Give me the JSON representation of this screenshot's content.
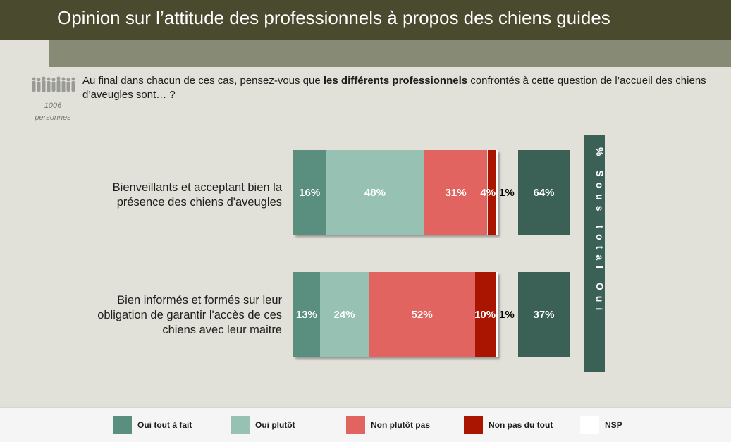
{
  "header": {
    "title": "Opinion sur l’attitude des professionnels à propos des chiens guides"
  },
  "sample": {
    "count": "1006",
    "unit": "personnes"
  },
  "question": {
    "before": "Au final dans chacun de ces cas, pensez-vous que ",
    "bold": "les différents professionnels",
    "after": " confrontés à cette question de l’accueil des chiens d’aveugles sont… ?"
  },
  "colors": {
    "oui_tout_a_fait": "#5a8f7f",
    "oui_plutot": "#96c1b3",
    "non_plutot_pas": "#e26460",
    "non_pas_du_tout": "#a91500",
    "nsp": "#ffffff",
    "subtotal": "#3b6055"
  },
  "subtotal_header": "% Sous total Oui",
  "chart_data": {
    "type": "bar",
    "orientation": "horizontal",
    "stacked": true,
    "unit": "%",
    "categories": [
      "Bienveillants et acceptant bien la présence des chiens d'aveugles",
      "Bien informés et formés sur leur obligation de garantir l'accès de ces chiens avec leur maitre"
    ],
    "series": [
      {
        "name": "Oui tout à fait",
        "values": [
          16,
          13
        ],
        "labels": [
          "16%",
          "13%"
        ]
      },
      {
        "name": "Oui plutôt",
        "values": [
          48,
          24
        ],
        "labels": [
          "48%",
          "24%"
        ]
      },
      {
        "name": "Non plutôt pas",
        "values": [
          31,
          52
        ],
        "labels": [
          "31%",
          "52%"
        ]
      },
      {
        "name": "Non pas du tout",
        "values": [
          4,
          10
        ],
        "labels": [
          "4%",
          "10%"
        ]
      },
      {
        "name": "NSP",
        "values": [
          1,
          1
        ],
        "labels": [
          "1%",
          "1%"
        ]
      }
    ],
    "subtotal_oui": {
      "values": [
        64,
        37
      ],
      "labels": [
        "64%",
        "37%"
      ]
    },
    "legend_position": "bottom"
  }
}
